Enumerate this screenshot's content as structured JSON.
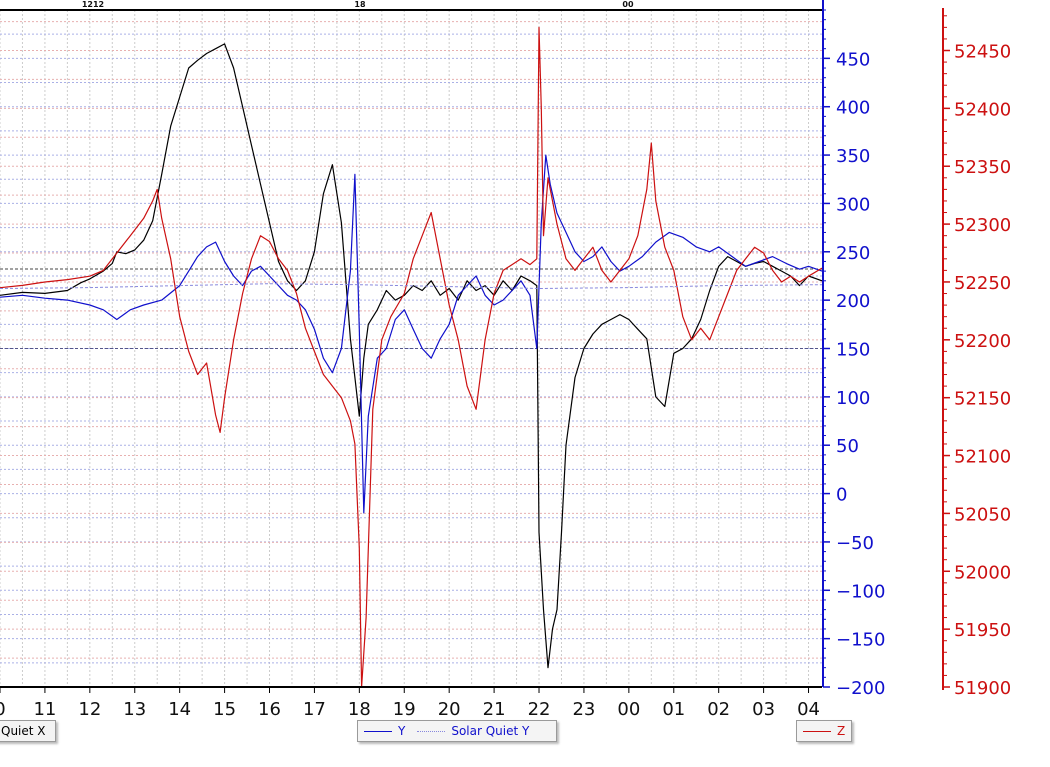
{
  "chart_data": {
    "type": "line",
    "title": "",
    "top_labels": [
      "1212",
      "18",
      "00"
    ],
    "x_ticks": [
      "0",
      "11",
      "12",
      "13",
      "14",
      "15",
      "16",
      "17",
      "18",
      "19",
      "20",
      "21",
      "22",
      "23",
      "00",
      "01",
      "02",
      "03",
      "04"
    ],
    "x_range": [
      10,
      28.3
    ],
    "y_left": {
      "color": "#1010cc",
      "range": [
        -200,
        500
      ],
      "ticks": [
        -200,
        -150,
        -100,
        -50,
        0,
        50,
        100,
        150,
        200,
        250,
        300,
        350,
        400,
        450
      ]
    },
    "y_right": {
      "color": "#cc1111",
      "range": [
        51900,
        52485
      ],
      "ticks": [
        51900,
        51950,
        52000,
        52050,
        52100,
        52150,
        52200,
        52250,
        52300,
        52350,
        52400,
        52450
      ]
    },
    "series": [
      {
        "name": "Solar Quiet X",
        "axis": "left",
        "color": "#000000",
        "x": [
          10.0,
          10.5,
          11.0,
          11.5,
          11.8,
          12.0,
          12.3,
          12.5,
          12.6,
          12.8,
          13.0,
          13.2,
          13.4,
          13.6,
          13.8,
          14.0,
          14.2,
          14.4,
          14.6,
          14.8,
          15.0,
          15.2,
          15.4,
          15.6,
          15.8,
          16.0,
          16.2,
          16.4,
          16.6,
          16.8,
          17.0,
          17.2,
          17.4,
          17.6,
          17.8,
          17.9,
          18.0,
          18.1,
          18.2,
          18.4,
          18.6,
          18.8,
          19.0,
          19.2,
          19.4,
          19.6,
          19.8,
          20.0,
          20.2,
          20.4,
          20.6,
          20.8,
          21.0,
          21.2,
          21.4,
          21.6,
          21.8,
          21.95,
          22.0,
          22.1,
          22.2,
          22.3,
          22.4,
          22.5,
          22.6,
          22.8,
          23.0,
          23.2,
          23.4,
          23.6,
          23.8,
          24.0,
          24.2,
          24.4,
          24.6,
          24.8,
          25.0,
          25.2,
          25.4,
          25.6,
          25.8,
          26.0,
          26.2,
          26.4,
          26.6,
          26.8,
          27.0,
          27.2,
          27.4,
          27.6,
          27.8,
          28.0,
          28.3
        ],
        "y": [
          205,
          208,
          207,
          210,
          218,
          222,
          230,
          238,
          250,
          248,
          252,
          262,
          282,
          330,
          380,
          410,
          440,
          448,
          455,
          460,
          465,
          440,
          400,
          360,
          320,
          280,
          240,
          220,
          210,
          220,
          250,
          310,
          340,
          280,
          160,
          120,
          80,
          140,
          175,
          190,
          210,
          200,
          205,
          215,
          210,
          220,
          205,
          212,
          200,
          220,
          210,
          215,
          205,
          220,
          210,
          225,
          220,
          215,
          -40,
          -120,
          -180,
          -140,
          -120,
          -40,
          50,
          120,
          150,
          165,
          175,
          180,
          185,
          180,
          170,
          160,
          100,
          90,
          145,
          150,
          160,
          180,
          210,
          235,
          245,
          240,
          235,
          238,
          240,
          235,
          230,
          225,
          215,
          225,
          220
        ]
      },
      {
        "name": "Y",
        "axis": "left",
        "color": "#1010cc",
        "x": [
          10.0,
          10.5,
          11.0,
          11.5,
          12.0,
          12.3,
          12.6,
          12.9,
          13.2,
          13.6,
          14.0,
          14.2,
          14.4,
          14.6,
          14.8,
          15.0,
          15.2,
          15.4,
          15.6,
          15.8,
          16.0,
          16.2,
          16.4,
          16.6,
          16.8,
          17.0,
          17.2,
          17.4,
          17.6,
          17.8,
          17.9,
          18.0,
          18.1,
          18.2,
          18.4,
          18.6,
          18.8,
          19.0,
          19.2,
          19.4,
          19.6,
          19.8,
          20.0,
          20.2,
          20.4,
          20.6,
          20.8,
          21.0,
          21.2,
          21.4,
          21.6,
          21.8,
          21.95,
          22.05,
          22.15,
          22.25,
          22.4,
          22.6,
          22.8,
          23.0,
          23.2,
          23.4,
          23.6,
          23.8,
          24.0,
          24.3,
          24.6,
          24.9,
          25.2,
          25.5,
          25.8,
          26.0,
          26.3,
          26.6,
          26.9,
          27.2,
          27.5,
          27.8,
          28.0,
          28.3
        ],
        "y": [
          203,
          205,
          202,
          200,
          195,
          190,
          180,
          190,
          195,
          200,
          215,
          230,
          245,
          255,
          260,
          240,
          225,
          215,
          230,
          235,
          225,
          215,
          205,
          200,
          190,
          170,
          140,
          125,
          150,
          230,
          330,
          170,
          -20,
          80,
          140,
          150,
          180,
          190,
          170,
          150,
          140,
          160,
          175,
          205,
          215,
          225,
          205,
          195,
          200,
          210,
          220,
          205,
          150,
          280,
          350,
          320,
          290,
          270,
          250,
          240,
          245,
          255,
          240,
          230,
          235,
          245,
          260,
          270,
          265,
          255,
          250,
          255,
          245,
          235,
          240,
          245,
          238,
          232,
          235,
          230
        ]
      },
      {
        "name": "Z",
        "axis": "right",
        "color": "#cc1111",
        "x": [
          10.0,
          10.5,
          11.0,
          11.5,
          12.0,
          12.3,
          12.6,
          12.9,
          13.2,
          13.4,
          13.5,
          13.6,
          13.8,
          14.0,
          14.2,
          14.4,
          14.6,
          14.8,
          14.9,
          15.0,
          15.2,
          15.4,
          15.6,
          15.8,
          16.0,
          16.2,
          16.4,
          16.6,
          16.8,
          17.0,
          17.2,
          17.4,
          17.6,
          17.8,
          17.9,
          18.0,
          18.05,
          18.15,
          18.3,
          18.5,
          18.7,
          19.0,
          19.2,
          19.4,
          19.6,
          19.8,
          20.0,
          20.2,
          20.4,
          20.6,
          20.8,
          21.0,
          21.2,
          21.4,
          21.6,
          21.8,
          21.95,
          22.0,
          22.05,
          22.1,
          22.2,
          22.3,
          22.4,
          22.6,
          22.8,
          23.0,
          23.2,
          23.4,
          23.6,
          23.8,
          24.0,
          24.2,
          24.4,
          24.5,
          24.6,
          24.8,
          25.0,
          25.2,
          25.4,
          25.6,
          25.8,
          26.0,
          26.2,
          26.4,
          26.6,
          26.8,
          27.0,
          27.2,
          27.4,
          27.6,
          27.8,
          28.0,
          28.3
        ],
        "y": [
          52245,
          52247,
          52250,
          52252,
          52255,
          52260,
          52275,
          52290,
          52305,
          52320,
          52330,
          52305,
          52270,
          52220,
          52190,
          52170,
          52180,
          52135,
          52120,
          52150,
          52200,
          52240,
          52270,
          52290,
          52285,
          52270,
          52260,
          52240,
          52210,
          52190,
          52170,
          52160,
          52150,
          52130,
          52110,
          52020,
          51900,
          51960,
          52140,
          52200,
          52220,
          52240,
          52270,
          52290,
          52310,
          52270,
          52230,
          52200,
          52160,
          52140,
          52200,
          52240,
          52260,
          52265,
          52270,
          52265,
          52270,
          52470,
          52400,
          52290,
          52340,
          52320,
          52300,
          52270,
          52260,
          52270,
          52280,
          52260,
          52250,
          52260,
          52270,
          52290,
          52330,
          52370,
          52320,
          52280,
          52260,
          52220,
          52200,
          52210,
          52200,
          52220,
          52240,
          52260,
          52270,
          52280,
          52275,
          52260,
          52250,
          52255,
          52250,
          52255,
          52262
        ]
      },
      {
        "name": "Solar Quiet Y",
        "axis": "left",
        "color": "#8888dd",
        "dashed": true,
        "x": [
          10.0,
          12.0,
          14.0,
          16.0,
          18.0,
          20.0,
          22.0,
          24.0,
          26.0,
          28.3
        ],
        "y": [
          212,
          213,
          215,
          217,
          216,
          214,
          212,
          213,
          215,
          216
        ]
      }
    ],
    "legends": [
      {
        "items": [
          {
            "label": "Quiet X",
            "color": "#000000",
            "style": "dotted"
          }
        ]
      },
      {
        "items": [
          {
            "label": "Y",
            "color": "#1010cc",
            "style": "solid"
          },
          {
            "label": "Solar Quiet Y",
            "color": "#8888dd",
            "style": "dotted"
          }
        ]
      },
      {
        "items": [
          {
            "label": "Z",
            "color": "#cc1111",
            "style": "solid"
          }
        ]
      }
    ],
    "grid": true
  }
}
